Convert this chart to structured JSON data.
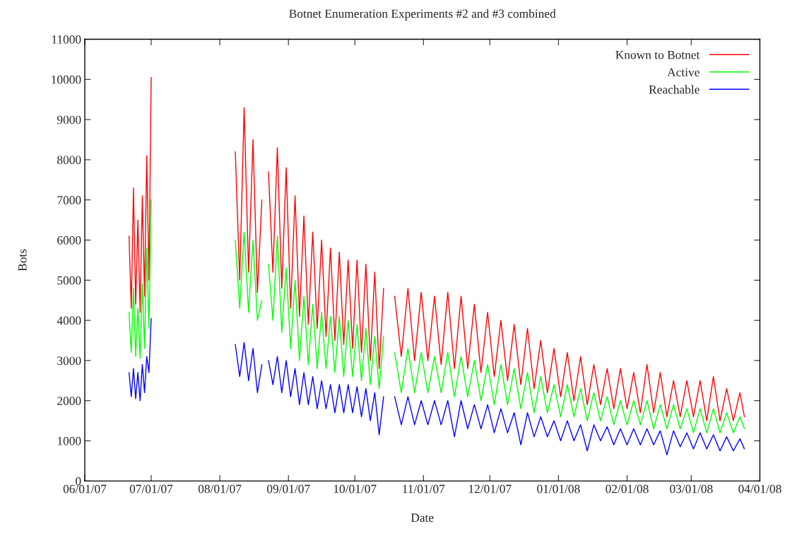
{
  "chart_data": {
    "type": "line",
    "title": "Botnet Enumeration Experiments #2 and #3 combined",
    "xlabel": "Date",
    "ylabel": "Bots",
    "x": [
      "2007-06-21",
      "2007-06-22",
      "2007-06-23",
      "2007-06-24",
      "2007-06-25",
      "2007-06-26",
      "2007-06-27",
      "2007-06-28",
      "2007-06-29",
      "2007-06-30",
      "2007-07-01",
      "2007-07-02",
      "2007-08-08",
      "2007-08-10",
      "2007-08-12",
      "2007-08-14",
      "2007-08-16",
      "2007-08-18",
      "2007-08-20",
      "2007-08-21",
      "2007-08-23",
      "2007-08-25",
      "2007-08-27",
      "2007-08-29",
      "2007-08-31",
      "2007-09-02",
      "2007-09-04",
      "2007-09-06",
      "2007-09-08",
      "2007-09-10",
      "2007-09-12",
      "2007-09-14",
      "2007-09-16",
      "2007-09-18",
      "2007-09-20",
      "2007-09-22",
      "2007-09-24",
      "2007-09-26",
      "2007-09-28",
      "2007-09-30",
      "2007-10-02",
      "2007-10-04",
      "2007-10-06",
      "2007-10-08",
      "2007-10-10",
      "2007-10-12",
      "2007-10-14",
      "2007-10-15",
      "2007-10-19",
      "2007-10-22",
      "2007-10-25",
      "2007-10-28",
      "2007-10-31",
      "2007-11-03",
      "2007-11-06",
      "2007-11-09",
      "2007-11-12",
      "2007-11-15",
      "2007-11-18",
      "2007-11-21",
      "2007-11-24",
      "2007-11-27",
      "2007-11-30",
      "2007-12-03",
      "2007-12-06",
      "2007-12-09",
      "2007-12-12",
      "2007-12-15",
      "2007-12-18",
      "2007-12-21",
      "2007-12-24",
      "2007-12-27",
      "2007-12-30",
      "2008-01-02",
      "2008-01-05",
      "2008-01-08",
      "2008-01-11",
      "2008-01-14",
      "2008-01-17",
      "2008-01-20",
      "2008-01-23",
      "2008-01-26",
      "2008-01-29",
      "2008-02-01",
      "2008-02-04",
      "2008-02-07",
      "2008-02-10",
      "2008-02-13",
      "2008-02-16",
      "2008-02-19",
      "2008-02-22",
      "2008-02-25",
      "2008-02-28",
      "2008-03-02",
      "2008-03-05",
      "2008-03-08",
      "2008-03-11",
      "2008-03-14",
      "2008-03-17",
      "2008-03-20",
      "2008-03-23",
      "2008-03-25"
    ],
    "series": [
      {
        "name": "Known to Botnet",
        "color": "#ff0000",
        "values": [
          6100,
          4300,
          7300,
          4400,
          6500,
          4200,
          7100,
          4600,
          8100,
          5000,
          10050,
          null,
          8200,
          5000,
          9300,
          5200,
          8500,
          4700,
          7000,
          null,
          7700,
          5200,
          8300,
          4800,
          7800,
          4300,
          7100,
          4100,
          6600,
          3900,
          6200,
          3800,
          6000,
          3600,
          5800,
          3500,
          5700,
          3400,
          5500,
          3300,
          5500,
          3200,
          5400,
          3000,
          5200,
          2800,
          4800,
          null,
          4600,
          3100,
          4800,
          3000,
          4700,
          3000,
          4600,
          2900,
          4700,
          2800,
          4600,
          2800,
          4400,
          2700,
          4200,
          2600,
          4000,
          2500,
          3900,
          2400,
          3800,
          2300,
          3500,
          2200,
          3300,
          2100,
          3200,
          2000,
          3100,
          1900,
          2900,
          1900,
          2800,
          1800,
          2800,
          1800,
          2700,
          1700,
          2900,
          1700,
          2700,
          1600,
          2500,
          1600,
          2500,
          1600,
          2500,
          1500,
          2600,
          1500,
          2300,
          1500,
          2200,
          1600
        ]
      },
      {
        "name": "Active",
        "color": "#00ff00",
        "values": [
          4200,
          3200,
          4800,
          3100,
          4300,
          3050,
          4900,
          3300,
          5800,
          3800,
          7000,
          null,
          6000,
          4300,
          6200,
          4200,
          6000,
          4000,
          4500,
          null,
          5400,
          4000,
          6100,
          3700,
          5300,
          3300,
          5000,
          3000,
          4600,
          2900,
          4400,
          2800,
          4200,
          2800,
          4100,
          2700,
          4100,
          2600,
          4000,
          2600,
          3900,
          2500,
          3800,
          2400,
          3600,
          2300,
          3600,
          null,
          3200,
          2200,
          3300,
          2200,
          3200,
          2200,
          3100,
          2200,
          3200,
          2100,
          3100,
          2100,
          3000,
          2000,
          2900,
          1900,
          2900,
          1900,
          2800,
          1800,
          2700,
          1700,
          2600,
          1700,
          2400,
          1600,
          2400,
          1600,
          2300,
          1500,
          2200,
          1500,
          2100,
          1400,
          2000,
          1400,
          2000,
          1400,
          2000,
          1300,
          1900,
          1300,
          1900,
          1300,
          1800,
          1200,
          1800,
          1200,
          1800,
          1200,
          1700,
          1200,
          1600,
          1300
        ]
      },
      {
        "name": "Reachable",
        "color": "#0000ff",
        "values": [
          2700,
          2100,
          2800,
          2050,
          2700,
          2000,
          2900,
          2200,
          3100,
          2700,
          4050,
          null,
          3400,
          2600,
          3450,
          2500,
          3300,
          2200,
          2900,
          null,
          3000,
          2400,
          3100,
          2200,
          3000,
          2100,
          2800,
          1900,
          2700,
          1900,
          2600,
          1800,
          2500,
          1800,
          2400,
          1700,
          2400,
          1700,
          2400,
          1700,
          2350,
          1600,
          2300,
          1500,
          2200,
          1150,
          2100,
          null,
          2100,
          1400,
          2100,
          1400,
          2000,
          1400,
          2000,
          1400,
          2000,
          1100,
          2000,
          1300,
          1900,
          1300,
          1900,
          1200,
          1800,
          1200,
          1700,
          900,
          1700,
          1100,
          1600,
          1100,
          1500,
          1000,
          1500,
          1000,
          1400,
          750,
          1400,
          1000,
          1350,
          900,
          1300,
          900,
          1300,
          900,
          1300,
          900,
          1250,
          650,
          1250,
          850,
          1200,
          800,
          1200,
          800,
          1150,
          750,
          1100,
          750,
          1050,
          800
        ]
      }
    ],
    "xlim": [
      "2007-06-01",
      "2008-04-01"
    ],
    "xticks": [
      {
        "value": "2007-06-01",
        "label": "06/01/07"
      },
      {
        "value": "2007-07-01",
        "label": "07/01/07"
      },
      {
        "value": "2007-08-01",
        "label": "08/01/07"
      },
      {
        "value": "2007-09-01",
        "label": "09/01/07"
      },
      {
        "value": "2007-10-01",
        "label": "10/01/07"
      },
      {
        "value": "2007-11-01",
        "label": "11/01/07"
      },
      {
        "value": "2007-12-01",
        "label": "12/01/07"
      },
      {
        "value": "2008-01-01",
        "label": "01/01/08"
      },
      {
        "value": "2008-02-01",
        "label": "02/01/08"
      },
      {
        "value": "2008-03-01",
        "label": "03/01/08"
      },
      {
        "value": "2008-04-01",
        "label": "04/01/08"
      }
    ],
    "ylim": [
      0,
      11000
    ],
    "yticks": [
      0,
      1000,
      2000,
      3000,
      4000,
      5000,
      6000,
      7000,
      8000,
      9000,
      10000,
      11000
    ],
    "grid": false,
    "legend": "top right",
    "marker": "none",
    "line_style": "solid"
  }
}
